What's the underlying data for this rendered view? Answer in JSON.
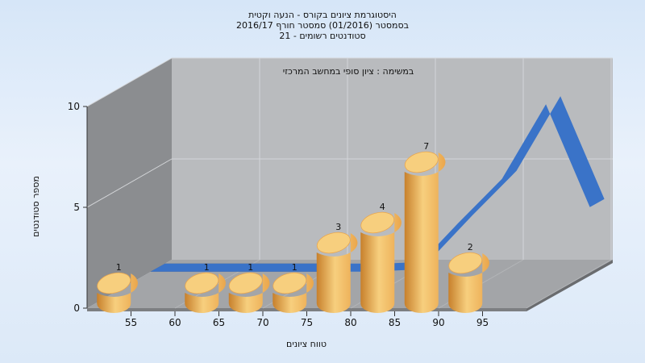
{
  "chart_data": {
    "type": "bar",
    "title_lines": [
      "היסטוגרמת ציונים בקורס - הנעה וקטית",
      "בסמסטר  (01/2016)  סמסטר חורף 2016/17",
      "סטודנטים רשומים - 21"
    ],
    "subtitle": "במשימה : ציון סופי במחשב המרכזי",
    "xlabel": "טווח ציונים",
    "ylabel": "מספר סטודנטים",
    "x_ticks": [
      "55",
      "60",
      "65",
      "70",
      "75",
      "80",
      "85",
      "90",
      "95"
    ],
    "y_ticks": [
      "0",
      "5",
      "10"
    ],
    "ylim": [
      0,
      10
    ],
    "categories": [
      "55",
      "65",
      "70",
      "75",
      "80",
      "85",
      "90",
      "95"
    ],
    "values": [
      1,
      1,
      1,
      1,
      3,
      4,
      7,
      2
    ],
    "curve": {
      "x": [
        50,
        55,
        60,
        65,
        70,
        75,
        80,
        85,
        90,
        95,
        100
      ],
      "y": [
        0,
        0,
        0,
        0,
        0,
        0,
        0.1,
        2.4,
        4.6,
        8.3,
        3.2
      ]
    },
    "colors": {
      "bar_light": "#f7cf7e",
      "bar_mid": "#eaa64c",
      "bar_dark": "#c7802c",
      "curve": "#3a73c8",
      "back_wall": "#b9bbbe",
      "side_wall": "#8b8d90",
      "floor": "#a3a5a8"
    }
  }
}
